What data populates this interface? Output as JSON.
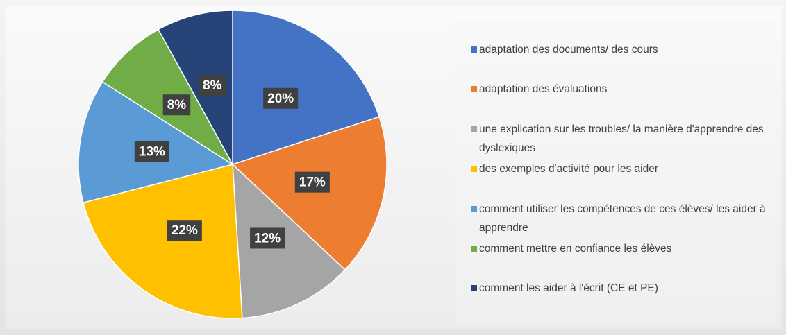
{
  "chart_data": {
    "type": "pie",
    "categories": [
      "adaptation des documents/ des cours",
      "adaptation des évaluations",
      "une explication sur les troubles/ la manière d'apprendre des dyslexiques",
      "des exemples d'activité pour les aider",
      "comment utiliser les compétences de ces élèves/ les aider à apprendre",
      "comment mettre en confiance les élèves",
      "comment les aider à l'écrit (CE et PE)"
    ],
    "values": [
      20,
      17,
      12,
      22,
      13,
      8,
      8
    ],
    "value_labels": [
      "20%",
      "17%",
      "12%",
      "22%",
      "13%",
      "8%",
      "8%"
    ],
    "colors": [
      "#4472c4",
      "#ed7d31",
      "#a5a5a5",
      "#ffc000",
      "#5b9bd5",
      "#70ad47",
      "#264478"
    ],
    "legend": "right"
  }
}
